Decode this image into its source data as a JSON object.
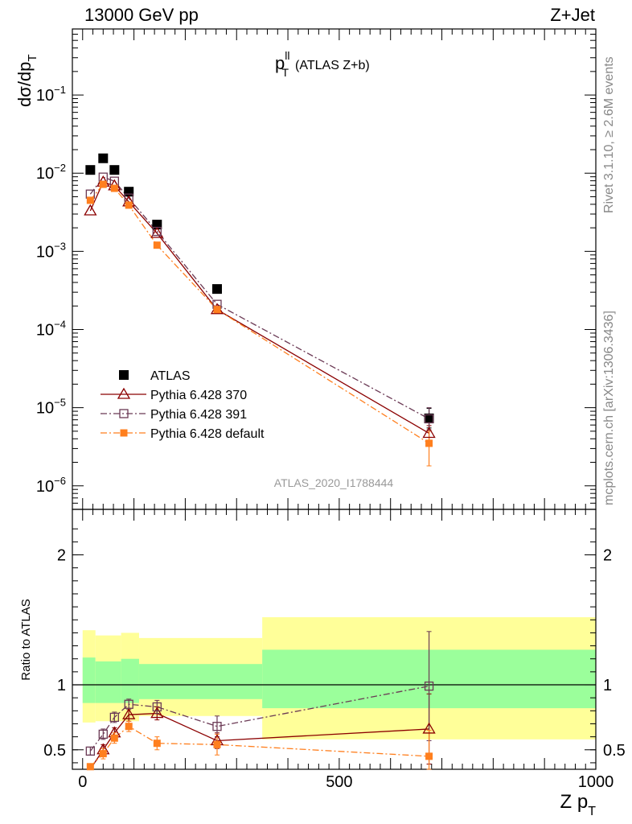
{
  "header": {
    "energy_label": "13000 GeV pp",
    "process_label": "Z+Jet"
  },
  "side": {
    "rivet_label": "Rivet 3.1.10, ≥ 2.6M events",
    "source_label": "mcplots.cern.ch [arXiv:1306.3436]"
  },
  "chart_data": [
    {
      "type": "scatter",
      "panel": "main",
      "title_main": "p",
      "title_sup": "ll",
      "title_sub": "T",
      "title_suffix": "(ATLAS Z+b)",
      "watermark": "ATLAS_2020_I1788444",
      "ylabel_main": "dσ/dp",
      "ylabel_sub": "T",
      "yscale": "log",
      "ylim": [
        5e-07,
        0.7
      ],
      "xlim": [
        -20,
        1000
      ],
      "x": [
        15,
        40,
        62,
        90,
        145,
        262,
        675
      ],
      "y_ticks": [
        {
          "base": "10",
          "exp": "−1",
          "value": 0.1
        },
        {
          "base": "10",
          "exp": "−2",
          "value": 0.01
        },
        {
          "base": "10",
          "exp": "−3",
          "value": 0.001
        },
        {
          "base": "10",
          "exp": "−4",
          "value": 0.0001
        },
        {
          "base": "10",
          "exp": "−5",
          "value": 1e-05
        },
        {
          "base": "10",
          "exp": "−6",
          "value": 1e-06
        }
      ],
      "legend_position": "lower-left",
      "series": [
        {
          "name": "ATLAS",
          "color": "#000000",
          "marker": "filled-square",
          "line": "none",
          "values": [
            0.011,
            0.0155,
            0.011,
            0.0058,
            0.0022,
            0.00033,
            7.3e-06
          ],
          "err_up": [
            0,
            0,
            0,
            0,
            0,
            0,
            2.5e-06
          ],
          "err_down": [
            0,
            0,
            0,
            0,
            0,
            0,
            1.8e-06
          ]
        },
        {
          "name": "Pythia 6.428 370",
          "color": "#8b0000",
          "marker": "open-triangle",
          "line": "solid",
          "values": [
            0.0033,
            0.0077,
            0.0069,
            0.0043,
            0.0017,
            0.00018,
            4.7e-06
          ],
          "err_up": [
            0,
            0,
            0,
            0,
            0,
            0,
            1.2e-06
          ],
          "err_down": [
            0,
            0,
            0,
            0,
            0,
            0,
            1.2e-06
          ]
        },
        {
          "name": "Pythia 6.428 391",
          "color": "#6b3a55",
          "marker": "open-square",
          "line": "dashdot",
          "values": [
            0.0054,
            0.0089,
            0.0079,
            0.0048,
            0.0018,
            0.00021,
            7.2e-06
          ],
          "err_up": [
            0,
            0,
            0,
            0,
            0,
            0,
            2.8e-06
          ],
          "err_down": [
            0,
            0,
            0,
            0,
            0,
            0,
            2e-06
          ]
        },
        {
          "name": "Pythia 6.428 default",
          "color": "#ff7f1e",
          "marker": "filled-small-square",
          "line": "dashdot",
          "values": [
            0.0045,
            0.0072,
            0.0064,
            0.0039,
            0.0012,
            0.00018,
            3.5e-06
          ],
          "err_up": [
            0,
            0,
            0,
            0,
            0,
            0,
            1.5e-06
          ],
          "err_down": [
            0,
            0,
            0,
            0,
            0,
            0,
            1.7e-06
          ]
        }
      ]
    },
    {
      "type": "scatter",
      "panel": "ratio",
      "ylabel": "Ratio to ATLAS",
      "ylim": [
        0.35,
        2.35
      ],
      "xlim": [
        -20,
        1000
      ],
      "x_ticks": [
        0,
        500,
        1000
      ],
      "y_ticks": [
        0.5,
        1,
        2
      ],
      "xlabel_main": "Z p",
      "xlabel_sub": "T",
      "bands": [
        {
          "x_range": [
            0,
            25
          ],
          "green": [
            0.86,
            1.21
          ],
          "yellow": [
            0.71,
            1.42
          ]
        },
        {
          "x_range": [
            25,
            75
          ],
          "green": [
            0.86,
            1.18
          ],
          "yellow": [
            0.72,
            1.38
          ]
        },
        {
          "x_range": [
            75,
            110
          ],
          "green": [
            0.86,
            1.2
          ],
          "yellow": [
            0.72,
            1.4
          ]
        },
        {
          "x_range": [
            110,
            350
          ],
          "green": [
            0.89,
            1.16
          ],
          "yellow": [
            0.76,
            1.36
          ]
        },
        {
          "x_range": [
            350,
            1000
          ],
          "green": [
            0.82,
            1.27
          ],
          "yellow": [
            0.58,
            1.52
          ]
        }
      ],
      "band_colors": {
        "green": "#9bff9b",
        "yellow": "#ffff99"
      },
      "series": [
        {
          "name": "Pythia 6.428 370",
          "color": "#8b0000",
          "marker": "open-triangle",
          "line": "solid",
          "values": [
            0.3,
            0.5,
            0.63,
            0.77,
            0.78,
            0.57,
            0.66
          ],
          "err": [
            0.02,
            0.04,
            0.04,
            0.05,
            0.05,
            0.06,
            0.27
          ]
        },
        {
          "name": "Pythia 6.428 391",
          "color": "#6b3a55",
          "marker": "open-square",
          "line": "dashdot",
          "values": [
            0.49,
            0.62,
            0.75,
            0.85,
            0.83,
            0.68,
            0.99
          ],
          "err": [
            0.03,
            0.04,
            0.04,
            0.04,
            0.05,
            0.08,
            0.42
          ]
        },
        {
          "name": "Pythia 6.428 default",
          "color": "#ff7f1e",
          "marker": "filled-small-square",
          "line": "dashdot",
          "values": [
            0.37,
            0.47,
            0.59,
            0.68,
            0.55,
            0.54,
            0.45
          ],
          "err": [
            0.02,
            0.04,
            0.04,
            0.04,
            0.05,
            0.08,
            0.2
          ]
        }
      ]
    }
  ]
}
